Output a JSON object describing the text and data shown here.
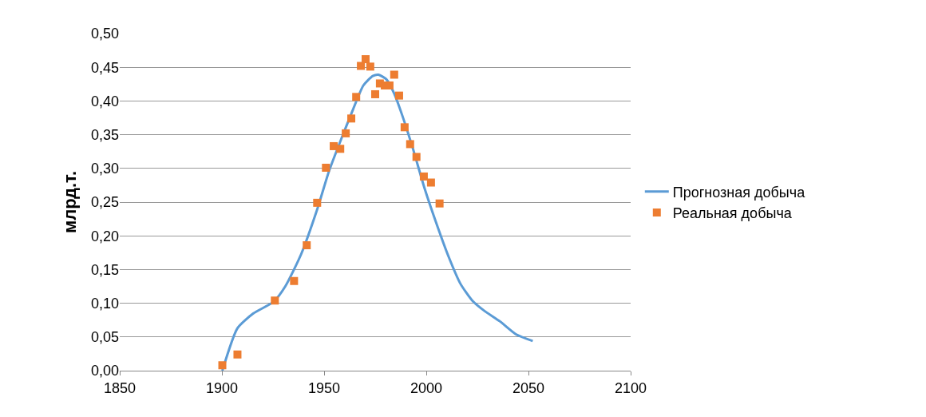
{
  "chart_data": {
    "type": "scatter",
    "ylabel": "млрд.т.",
    "xlim": [
      1850,
      2100
    ],
    "xticks": [
      1850,
      1900,
      1950,
      2000,
      2050,
      2100
    ],
    "ylim": [
      0,
      0.5
    ],
    "yticks": [
      {
        "value": 0,
        "label": "0,00"
      },
      {
        "value": 0.05,
        "label": "0,05"
      },
      {
        "value": 0.1,
        "label": "0,10"
      },
      {
        "value": 0.15,
        "label": "0,15"
      },
      {
        "value": 0.2,
        "label": "0,20"
      },
      {
        "value": 0.25,
        "label": "0,25"
      },
      {
        "value": 0.3,
        "label": "0,30"
      },
      {
        "value": 0.35,
        "label": "0,35"
      },
      {
        "value": 0.4,
        "label": "0,40"
      },
      {
        "value": 0.45,
        "label": "0,45"
      },
      {
        "value": 0.5,
        "label": "0,50"
      }
    ],
    "grid": "y",
    "legend": "right",
    "series": [
      {
        "name": "Прогнозная добыча",
        "type": "line",
        "color": "#5b9bd5",
        "marker": "none",
        "line_style": "solid",
        "x": [
          1900.2,
          1907.6,
          1915.4,
          1925.2,
          1931,
          1938.8,
          1946.6,
          1952.4,
          1958.3,
          1964.1,
          1969.2,
          1973.8,
          1976.6,
          1980.5,
          1984.3,
          1988.2,
          1993.3,
          1999.1,
          2005,
          2010.8,
          2016.7,
          2022.5,
          2028.3,
          2036.1,
          2043.9,
          2052.1
        ],
        "values": [
          0,
          0.063,
          0.085,
          0.102,
          0.125,
          0.173,
          0.239,
          0.296,
          0.343,
          0.387,
          0.423,
          0.437,
          0.439,
          0.432,
          0.411,
          0.379,
          0.331,
          0.271,
          0.218,
          0.17,
          0.129,
          0.104,
          0.089,
          0.073,
          0.054,
          0.044
        ]
      },
      {
        "name": "Реальная добыча",
        "color": "#ed7d31",
        "marker": "square",
        "x": [
          1900.2,
          1907.6,
          1925.9,
          1935.3,
          1941.5,
          1946.6,
          1950.9,
          1954.7,
          1957.9,
          1960.6,
          1963.3,
          1965.7,
          1968,
          1970.3,
          1972.6,
          1975,
          1977.3,
          1979.7,
          1982,
          1984.3,
          1986.7,
          1989.4,
          1992.1,
          1995.2,
          1998.8,
          2002.3,
          2006.5
        ],
        "values": [
          0.008,
          0.024,
          0.104,
          0.133,
          0.186,
          0.249,
          0.301,
          0.333,
          0.329,
          0.352,
          0.374,
          0.406,
          0.452,
          0.462,
          0.451,
          0.41,
          0.426,
          0.423,
          0.423,
          0.439,
          0.408,
          0.361,
          0.336,
          0.317,
          0.288,
          0.279,
          0.248
        ]
      }
    ]
  }
}
